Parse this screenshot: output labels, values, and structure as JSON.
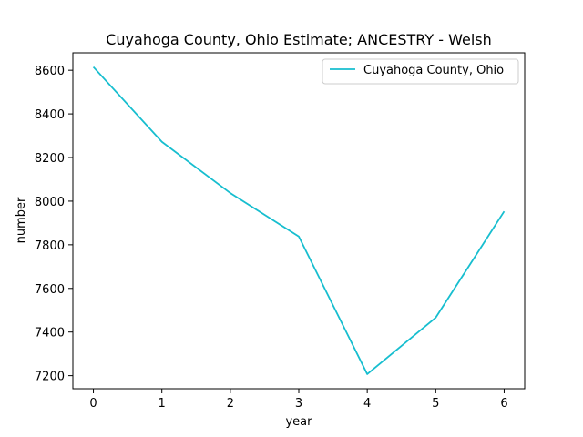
{
  "chart_data": {
    "type": "line",
    "title": "Cuyahoga County, Ohio Estimate; ANCESTRY - Welsh",
    "xlabel": "year",
    "ylabel": "number",
    "x": [
      0,
      1,
      2,
      3,
      4,
      5,
      6
    ],
    "xlim": [
      -0.3,
      6.3
    ],
    "ylim": [
      7140,
      8680
    ],
    "xticks": [
      0,
      1,
      2,
      3,
      4,
      5,
      6
    ],
    "yticks": [
      7200,
      7400,
      7600,
      7800,
      8000,
      8200,
      8400,
      8600
    ],
    "grid": false,
    "legend_position": "upper-right",
    "series": [
      {
        "name": "Cuyahoga County, Ohio",
        "color": "#17becf",
        "values": [
          8615,
          8272,
          8037,
          7838,
          7207,
          7466,
          7953
        ]
      }
    ]
  }
}
